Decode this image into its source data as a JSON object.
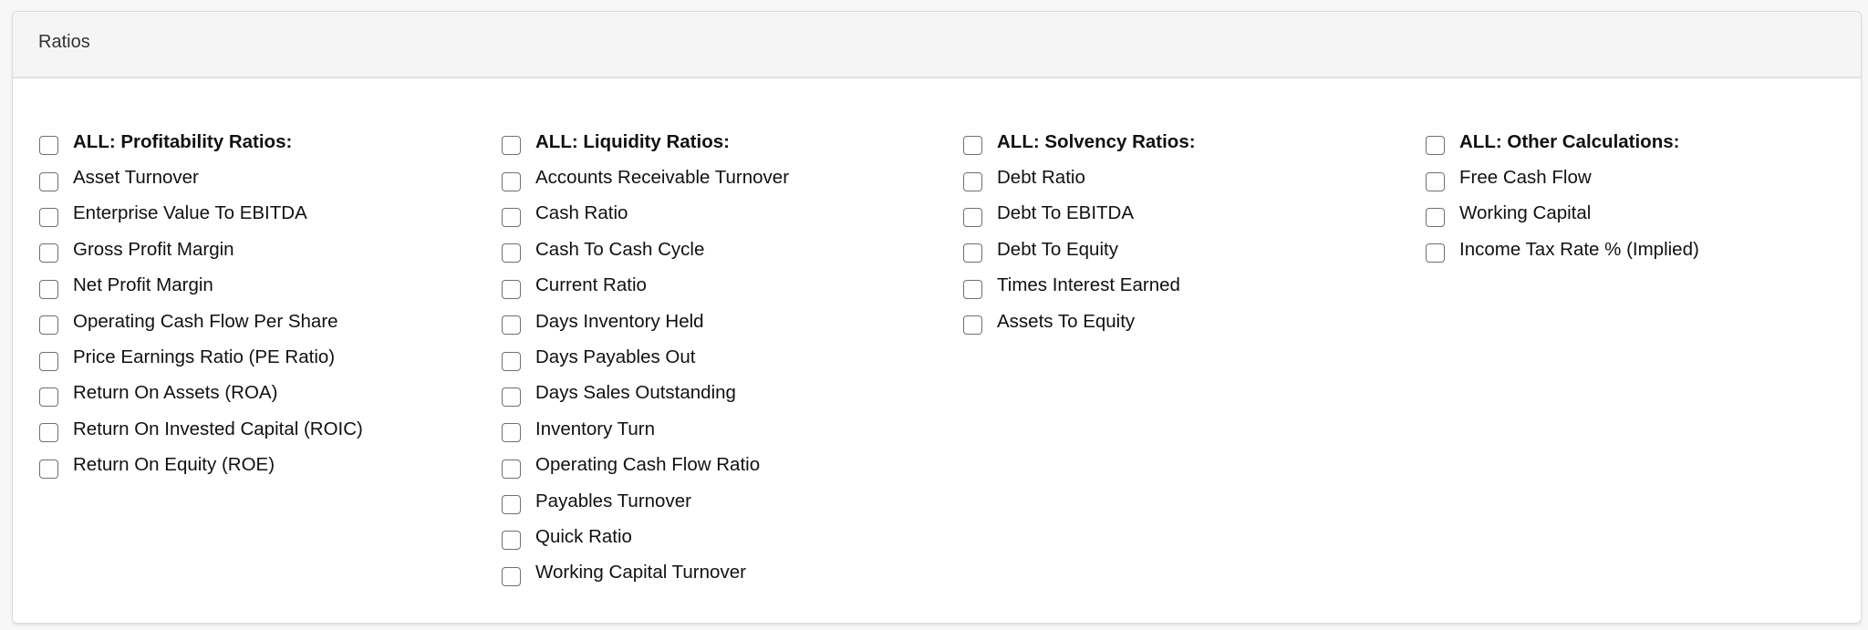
{
  "panel": {
    "title": "Ratios"
  },
  "groups": [
    {
      "header": "ALL: Profitability Ratios:",
      "items": [
        "Asset Turnover",
        "Enterprise Value To EBITDA",
        "Gross Profit Margin",
        "Net Profit Margin",
        "Operating Cash Flow Per Share",
        "Price Earnings Ratio (PE Ratio)",
        "Return On Assets (ROA)",
        "Return On Invested Capital (ROIC)",
        "Return On Equity (ROE)"
      ]
    },
    {
      "header": "ALL: Liquidity Ratios:",
      "items": [
        "Accounts Receivable Turnover",
        "Cash Ratio",
        "Cash To Cash Cycle",
        "Current Ratio",
        "Days Inventory Held",
        "Days Payables Out",
        "Days Sales Outstanding",
        "Inventory Turn",
        "Operating Cash Flow Ratio",
        "Payables Turnover",
        "Quick Ratio",
        "Working Capital Turnover"
      ]
    },
    {
      "header": "ALL: Solvency Ratios:",
      "items": [
        "Debt Ratio",
        "Debt To EBITDA",
        "Debt To Equity",
        "Times Interest Earned",
        "Assets To Equity"
      ]
    },
    {
      "header": "ALL: Other Calculations:",
      "items": [
        "Free Cash Flow",
        "Working Capital",
        "Income Tax Rate % (Implied)"
      ]
    }
  ]
}
